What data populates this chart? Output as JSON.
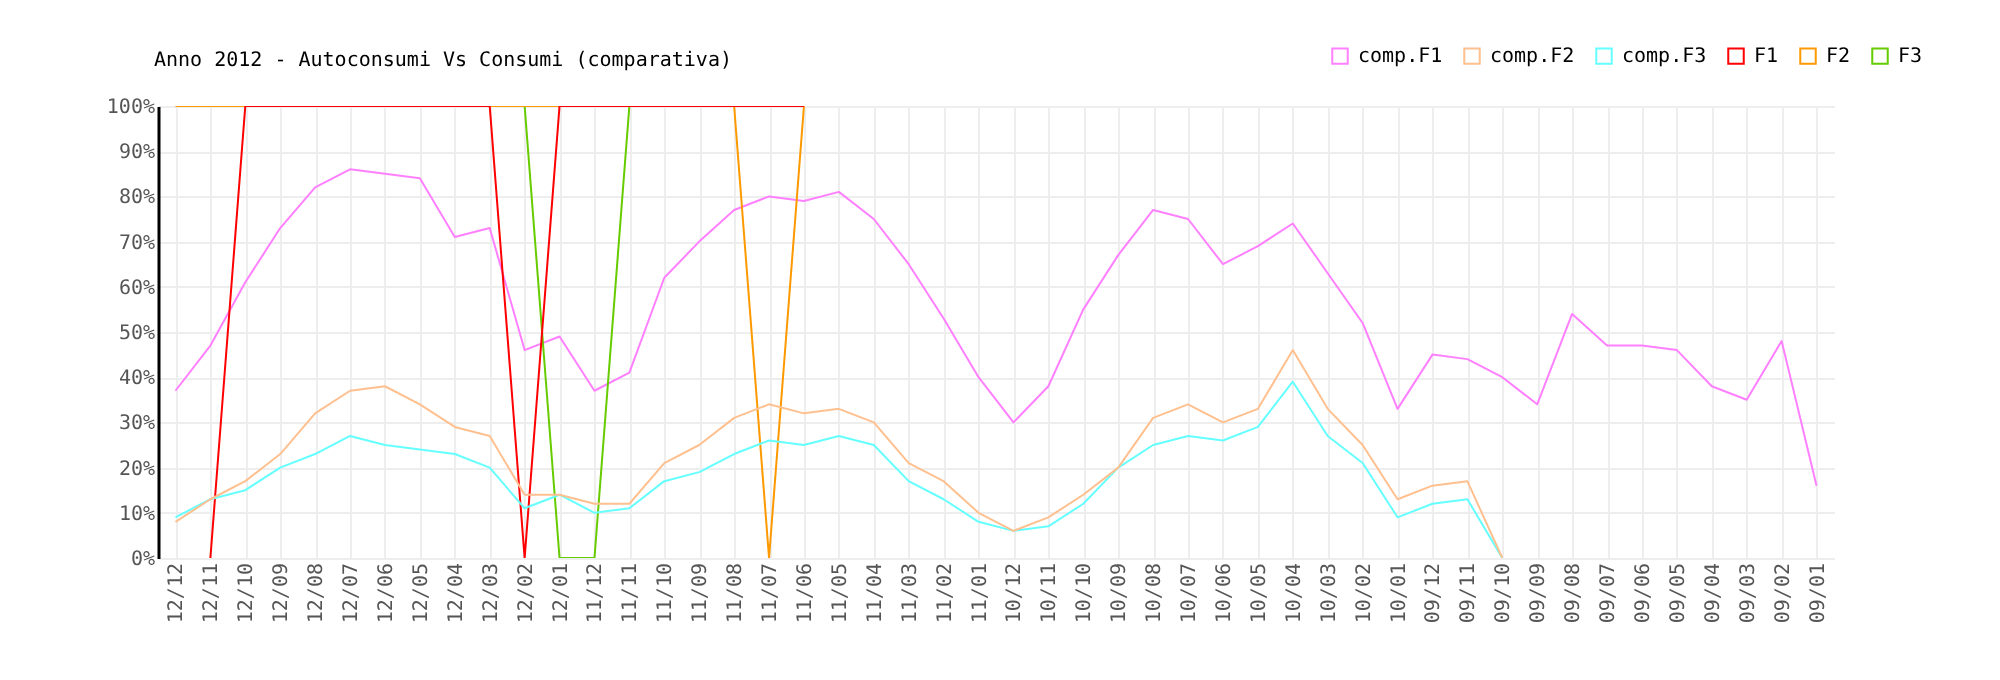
{
  "chart_data": {
    "type": "line",
    "title": "Anno 2012 - Autoconsumi Vs Consumi (comparativa)",
    "categories": [
      "12/12",
      "12/11",
      "12/10",
      "12/09",
      "12/08",
      "12/07",
      "12/06",
      "12/05",
      "12/04",
      "12/03",
      "12/02",
      "12/01",
      "11/12",
      "11/11",
      "11/10",
      "11/09",
      "11/08",
      "11/07",
      "11/06",
      "11/05",
      "11/04",
      "11/03",
      "11/02",
      "11/01",
      "10/12",
      "10/11",
      "10/10",
      "10/09",
      "10/08",
      "10/07",
      "10/06",
      "10/05",
      "10/04",
      "10/03",
      "10/02",
      "10/01",
      "09/12",
      "09/11",
      "09/10",
      "09/09",
      "09/08",
      "09/07",
      "09/06",
      "09/05",
      "09/04",
      "09/03",
      "09/02",
      "09/01"
    ],
    "series": [
      {
        "name": "comp.F1",
        "color": "#ff80ff",
        "values": [
          37,
          47,
          61,
          73,
          82,
          86,
          85,
          84,
          71,
          73,
          46,
          49,
          37,
          41,
          62,
          70,
          77,
          80,
          79,
          81,
          75,
          65,
          53,
          40,
          30,
          38,
          55,
          67,
          77,
          75,
          65,
          69,
          74,
          63,
          52,
          33,
          45,
          44,
          40,
          34,
          54,
          47,
          47,
          46,
          38,
          35,
          48,
          16
        ]
      },
      {
        "name": "comp.F2",
        "color": "#ffc090",
        "values": [
          8,
          13,
          17,
          23,
          32,
          37,
          38,
          34,
          29,
          27,
          14,
          14,
          12,
          12,
          21,
          25,
          31,
          34,
          32,
          33,
          30,
          21,
          17,
          10,
          6,
          9,
          14,
          20,
          31,
          34,
          30,
          33,
          46,
          33,
          25,
          13,
          16,
          17,
          0,
          null,
          null,
          null,
          null,
          null,
          null,
          null,
          null,
          null
        ]
      },
      {
        "name": "comp.F3",
        "color": "#66ffff",
        "values": [
          9,
          13,
          15,
          20,
          23,
          27,
          25,
          24,
          23,
          20,
          11,
          14,
          10,
          11,
          17,
          19,
          23,
          26,
          25,
          27,
          25,
          17,
          13,
          8,
          6,
          7,
          12,
          20,
          25,
          27,
          26,
          29,
          39,
          27,
          21,
          9,
          12,
          13,
          0,
          null,
          null,
          null,
          null,
          null,
          null,
          null,
          null,
          null
        ]
      },
      {
        "name": "F1",
        "color": "#ff0000",
        "values": [
          null,
          0,
          100,
          100,
          100,
          100,
          100,
          100,
          100,
          100,
          0,
          100,
          100,
          100,
          100,
          100,
          100,
          100,
          100,
          null,
          null,
          null,
          null,
          null,
          null,
          null,
          null,
          null,
          null,
          null,
          null,
          null,
          null,
          null,
          null,
          null,
          null,
          null,
          null,
          null,
          null,
          null,
          null,
          null,
          null,
          null,
          null,
          null
        ]
      },
      {
        "name": "F2",
        "color": "#ff9900",
        "values": [
          100,
          100,
          100,
          null,
          null,
          null,
          null,
          null,
          null,
          null,
          null,
          null,
          null,
          null,
          null,
          null,
          100,
          0,
          100,
          null,
          null,
          null,
          null,
          null,
          null,
          null,
          null,
          null,
          null,
          null,
          null,
          null,
          null,
          null,
          null,
          null,
          null,
          null,
          null,
          null,
          null,
          null,
          null,
          null,
          null,
          null,
          null,
          null
        ]
      },
      {
        "name": "F3",
        "color": "#66cc00",
        "values": [
          null,
          null,
          null,
          null,
          null,
          null,
          null,
          null,
          null,
          null,
          100,
          0,
          0,
          100,
          null,
          null,
          null,
          null,
          null,
          null,
          null,
          null,
          null,
          null,
          null,
          null,
          null,
          null,
          null,
          null,
          null,
          null,
          null,
          null,
          null,
          null,
          null,
          null,
          null,
          null,
          null,
          null,
          null,
          null,
          null,
          null,
          null,
          null
        ]
      }
    ],
    "ylim": [
      0,
      100
    ],
    "yticks": [
      {
        "value": 0,
        "label": "0%"
      },
      {
        "value": 10,
        "label": "10%"
      },
      {
        "value": 20,
        "label": "20%"
      },
      {
        "value": 30,
        "label": "30%"
      },
      {
        "value": 40,
        "label": "40%"
      },
      {
        "value": 50,
        "label": "50%"
      },
      {
        "value": 60,
        "label": "60%"
      },
      {
        "value": 70,
        "label": "70%"
      },
      {
        "value": 80,
        "label": "80%"
      },
      {
        "value": 90,
        "label": "90%"
      },
      {
        "value": 100,
        "label": "100%"
      }
    ],
    "grid": true,
    "legend": "top right"
  }
}
